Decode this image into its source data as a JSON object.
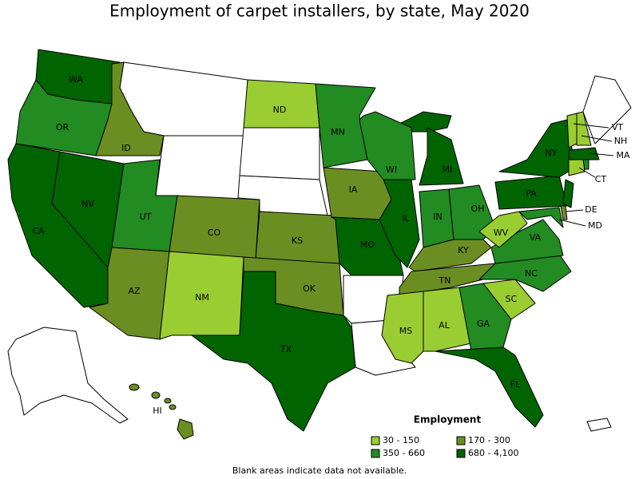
{
  "title": "Employment of carpet installers, by state, May 2020",
  "legend": {
    "title": "Employment",
    "items": [
      {
        "label": "30 - 150",
        "color": "#9acd32"
      },
      {
        "label": "170 - 300",
        "color": "#6b8e23"
      },
      {
        "label": "350 - 660",
        "color": "#228b22"
      },
      {
        "label": "680 - 4,100",
        "color": "#006400"
      }
    ]
  },
  "states": [
    {
      "label": "WA",
      "color": "#006400"
    },
    {
      "label": "OR",
      "color": "#228b22"
    },
    {
      "label": "CA",
      "color": "#006400"
    },
    {
      "label": "NV",
      "color": "#006400"
    },
    {
      "label": "ID",
      "color": "#6b8e23"
    },
    {
      "label": "UT",
      "color": "#228b22"
    },
    {
      "label": "AZ",
      "color": "#6b8e23"
    },
    {
      "label": "CO",
      "color": "#6b8e23"
    },
    {
      "label": "NM",
      "color": "#9acd32"
    },
    {
      "label": "ND",
      "color": "#9acd32"
    },
    {
      "label": "KS",
      "color": "#6b8e23"
    },
    {
      "label": "OK",
      "color": "#6b8e23"
    },
    {
      "label": "TX",
      "color": "#006400"
    },
    {
      "label": "MN",
      "color": "#228b22"
    },
    {
      "label": "IA",
      "color": "#6b8e23"
    },
    {
      "label": "MO",
      "color": "#006400"
    },
    {
      "label": "WI",
      "color": "#228b22"
    },
    {
      "label": "IL",
      "color": "#006400"
    },
    {
      "label": "MI",
      "color": "#006400"
    },
    {
      "label": "IN",
      "color": "#228b22"
    },
    {
      "label": "OH",
      "color": "#228b22"
    },
    {
      "label": "KY",
      "color": "#6b8e23"
    },
    {
      "label": "TN",
      "color": "#6b8e23"
    },
    {
      "label": "MS",
      "color": "#9acd32"
    },
    {
      "label": "AL",
      "color": "#9acd32"
    },
    {
      "label": "GA",
      "color": "#228b22"
    },
    {
      "label": "FL",
      "color": "#006400"
    },
    {
      "label": "SC",
      "color": "#9acd32"
    },
    {
      "label": "NC",
      "color": "#228b22"
    },
    {
      "label": "VA",
      "color": "#228b22"
    },
    {
      "label": "WV",
      "color": "#9acd32"
    },
    {
      "label": "PA",
      "color": "#006400"
    },
    {
      "label": "NY",
      "color": "#006400"
    },
    {
      "label": "MD",
      "color": "#228b22"
    },
    {
      "label": "DE",
      "color": "#6b8e23"
    },
    {
      "label": null,
      "color": "#006400"
    },
    {
      "label": "CT",
      "color": "#9acd32"
    },
    {
      "label": null,
      "color": "#228b22"
    },
    {
      "label": "MA",
      "color": "#006400"
    },
    {
      "label": "VT",
      "color": "#9acd32"
    },
    {
      "label": "NH",
      "color": "#9acd32"
    },
    {
      "label": "HI",
      "color": "#6b8e23"
    }
  ],
  "note": "Blank areas indicate data not available."
}
